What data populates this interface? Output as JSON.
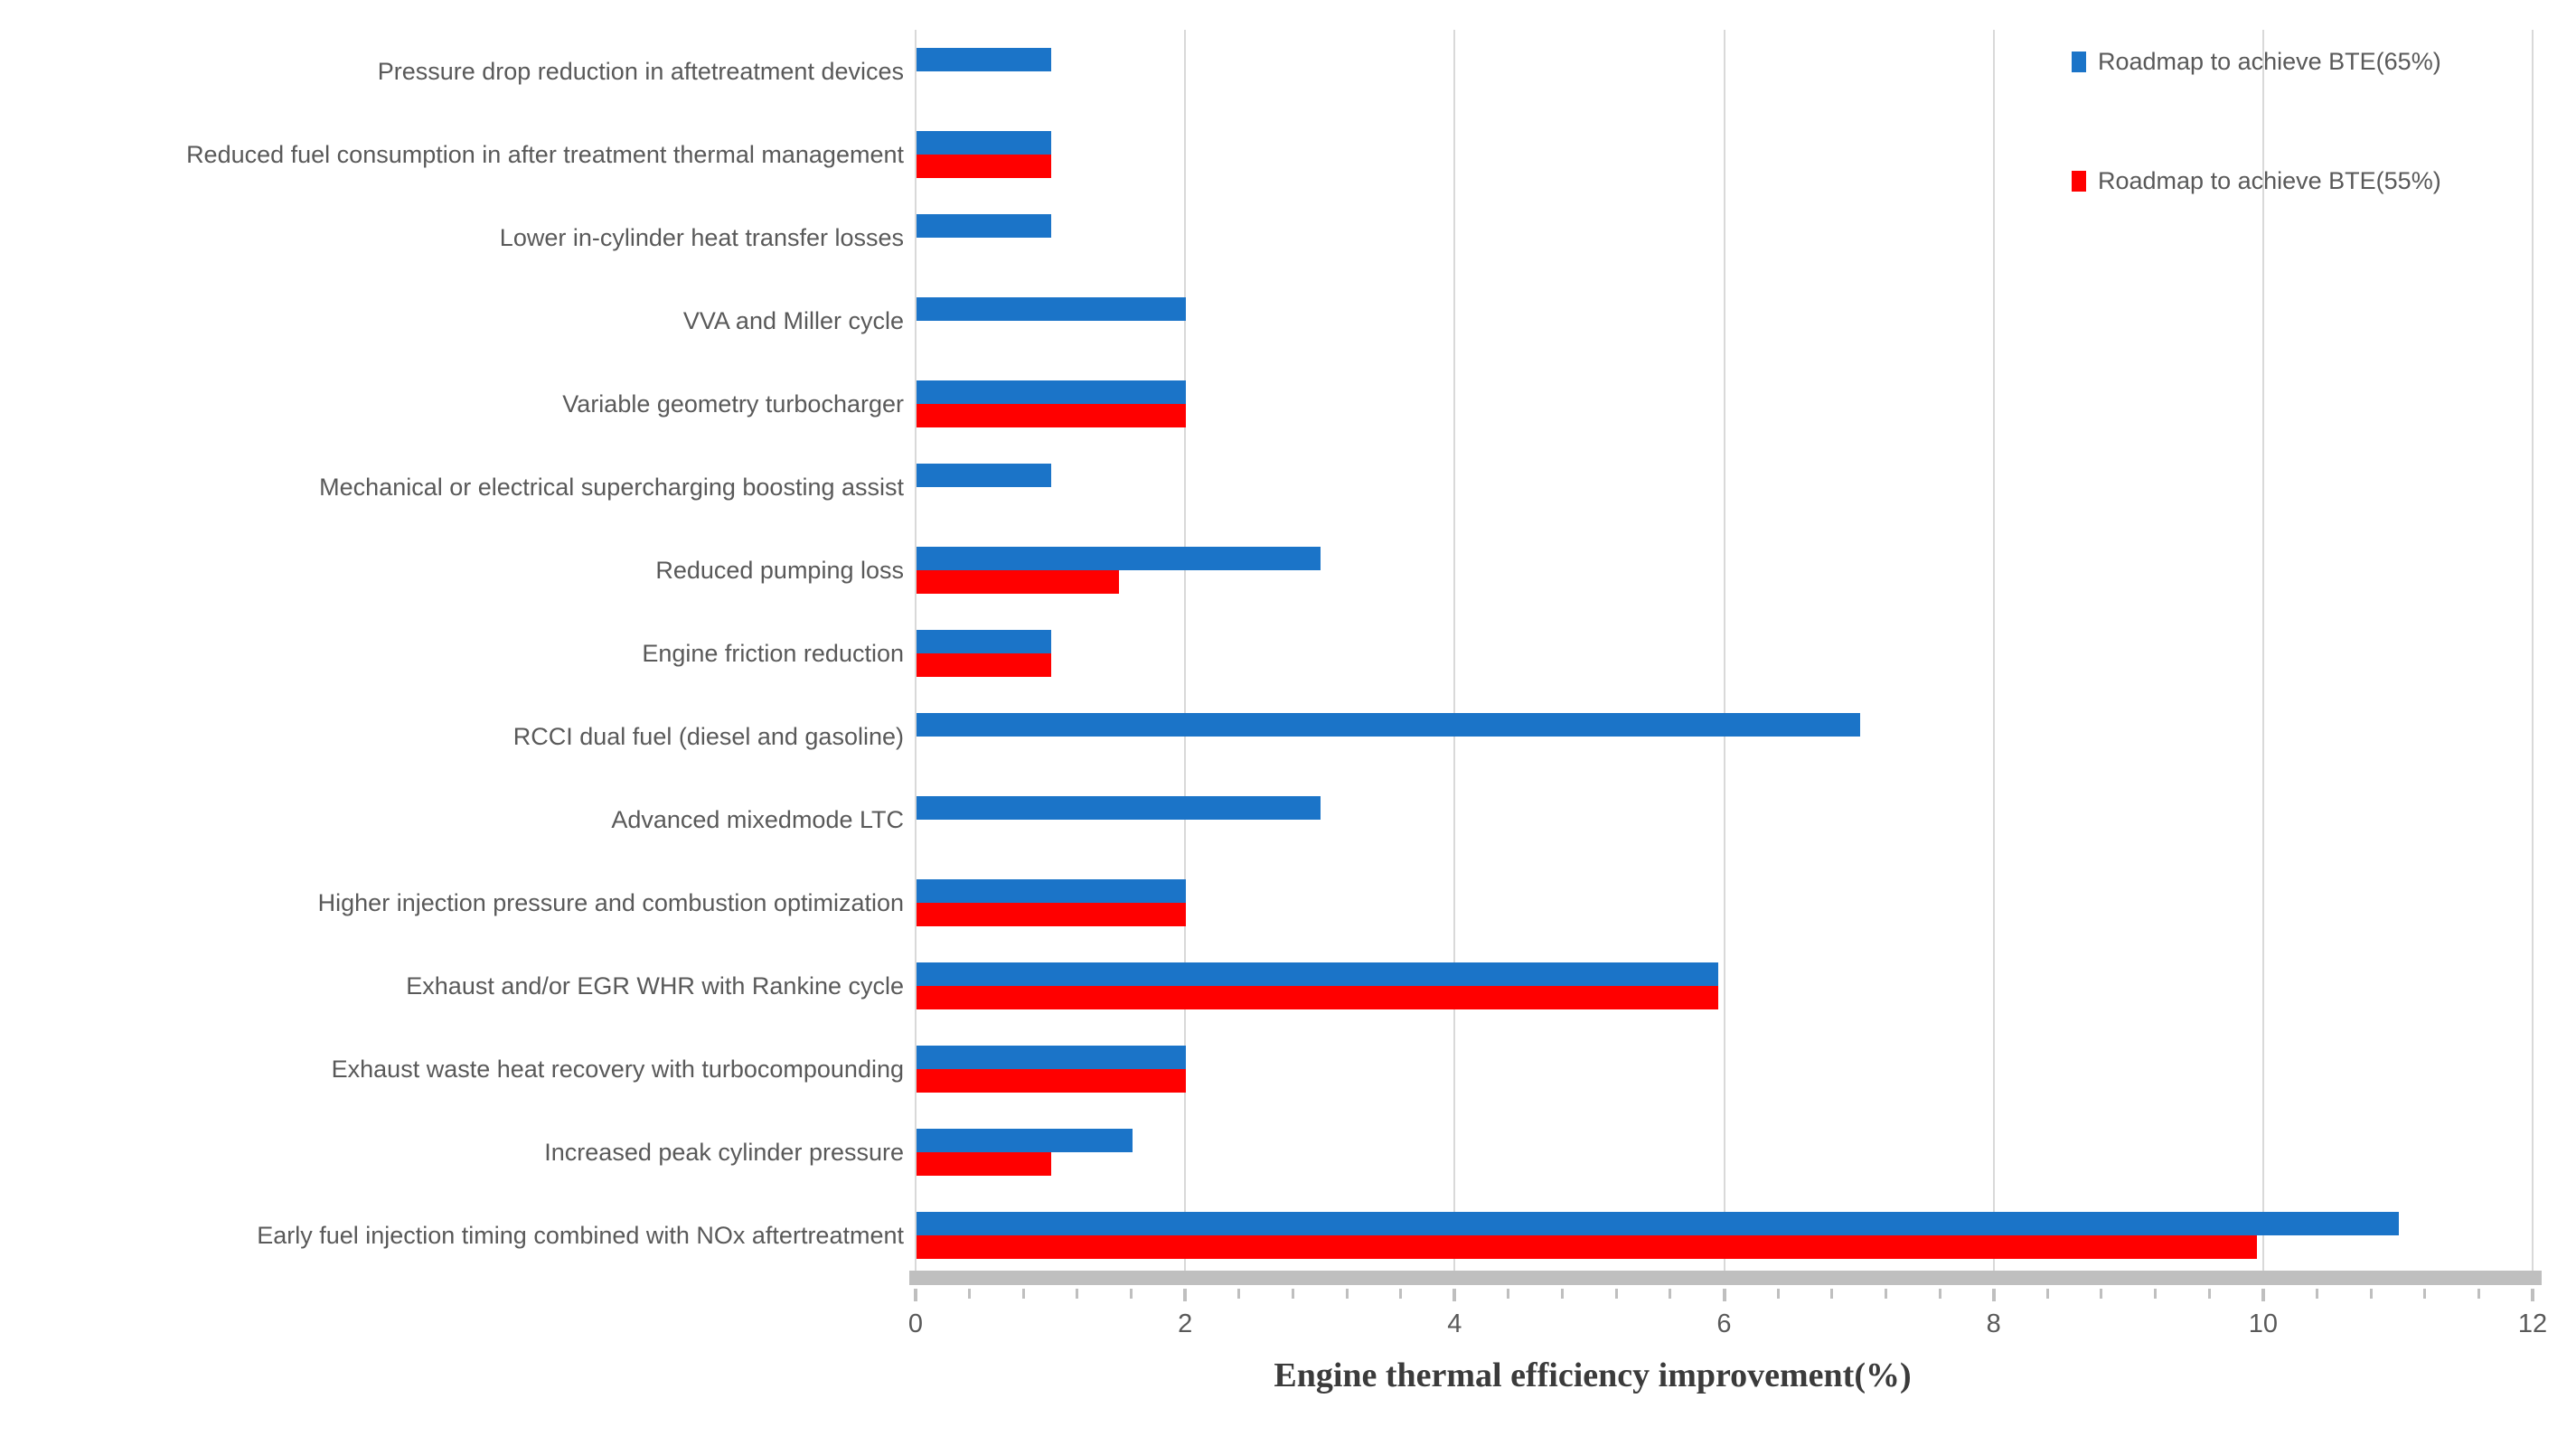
{
  "chart_data": {
    "type": "bar",
    "orientation": "horizontal",
    "title": "",
    "xlabel": "Engine thermal efficiency improvement(%)",
    "ylabel": "",
    "xlim": [
      0,
      12
    ],
    "x_major_tick_values": [
      0,
      2,
      4,
      6,
      8,
      10,
      12
    ],
    "x_tick_labels": [
      "0",
      "2",
      "4",
      "6",
      "8",
      "10",
      "12"
    ],
    "x_minor_unit": 0.4,
    "grid": "vertical-major",
    "legend_position": "top-right",
    "categories": [
      "Pressure drop reduction in aftetreatment devices",
      "Reduced fuel consumption in after treatment thermal management",
      "Lower in-cylinder heat transfer losses",
      "VVA and Miller cycle",
      "Variable geometry turbocharger",
      "Mechanical or electrical supercharging boosting assist",
      "Reduced pumping loss",
      "Engine friction reduction",
      "RCCI dual fuel (diesel and gasoline)",
      "Advanced mixedmode LTC",
      "Higher injection pressure and combustion optimization",
      "Exhaust and/or EGR WHR with Rankine cycle",
      "Exhaust waste heat recovery with turbocompounding",
      "Increased peak cylinder pressure",
      "Early fuel injection timing combined with NOx aftertreatment"
    ],
    "series": [
      {
        "name": "Roadmap to achieve BTE(65%)",
        "color": "#1b74c8",
        "values": [
          1,
          1,
          1,
          2,
          2,
          1,
          3,
          1,
          7,
          3,
          2,
          5.95,
          2,
          1.6,
          11
        ]
      },
      {
        "name": "Roadmap to achieve BTE(55%)",
        "color": "#ff0000",
        "values": [
          0,
          1,
          0,
          0,
          2,
          0,
          1.5,
          1,
          0,
          0,
          2,
          5.95,
          2,
          1,
          9.95
        ]
      }
    ]
  },
  "style_colors": {
    "gridline": "#d9d9d9",
    "axis_band": "#bfbfbf",
    "tick": "#bfbfbf",
    "tick_label_text": "#595959",
    "category_label_text": "#595959",
    "legend_text": "#595959",
    "axis_title_text": "#3b3b3b"
  }
}
